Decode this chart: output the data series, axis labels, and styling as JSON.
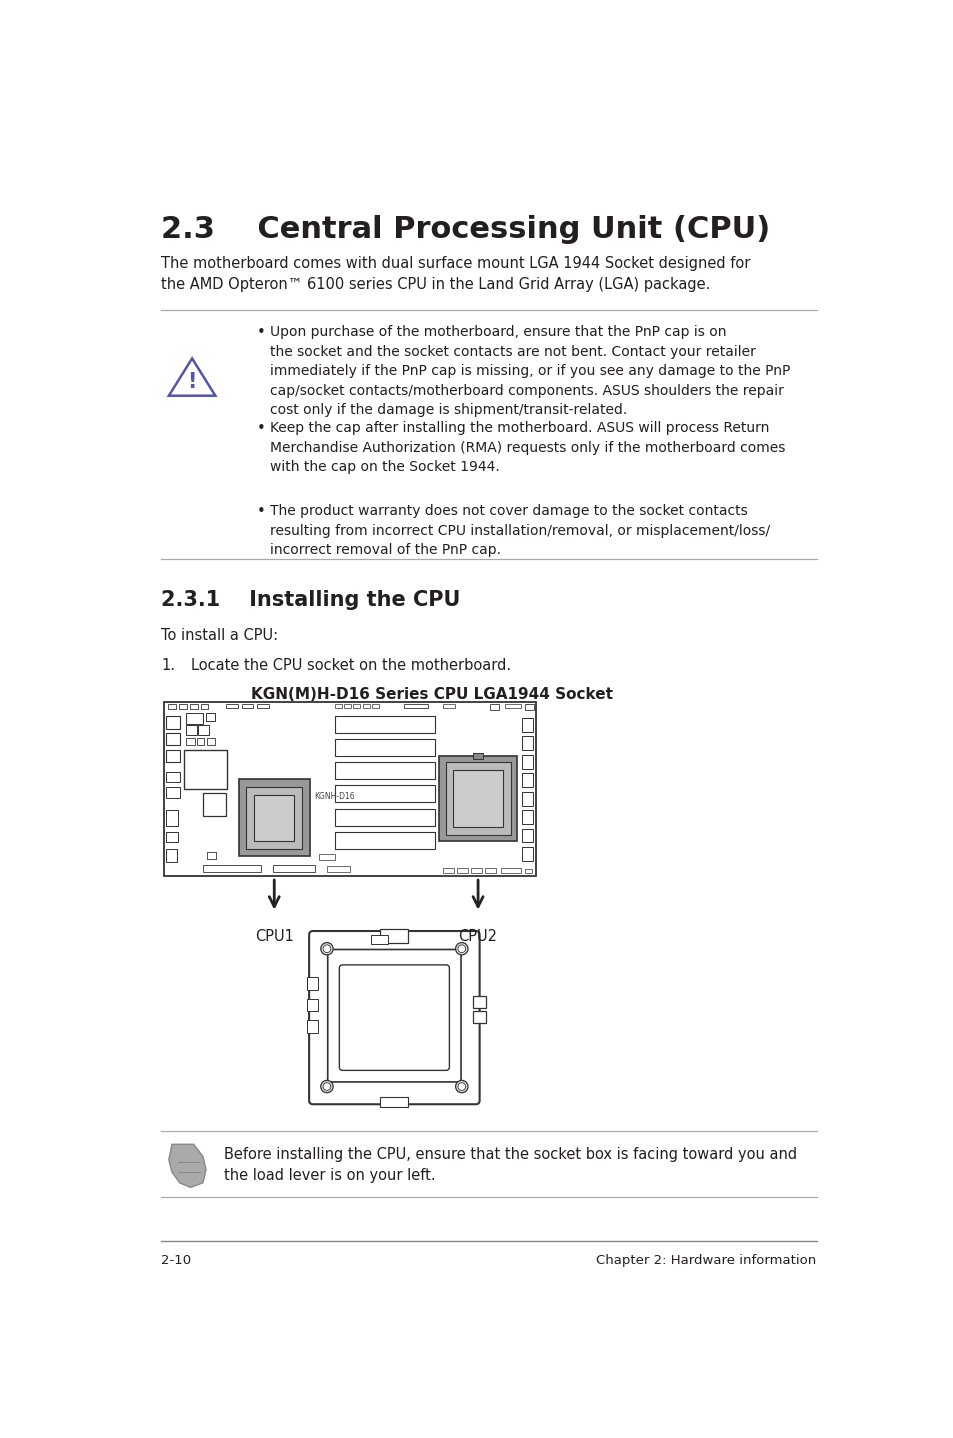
{
  "title": "2.3    Central Processing Unit (CPU)",
  "intro_text": "The motherboard comes with dual surface mount LGA 1944 Socket designed for\nthe AMD Opteron™ 6100 series CPU in the Land Grid Array (LGA) package.",
  "warning_bullets": [
    "Upon purchase of the motherboard, ensure that the PnP cap is on\nthe socket and the socket contacts are not bent. Contact your retailer\nimmediately if the PnP cap is missing, or if you see any damage to the PnP\ncap/socket contacts/motherboard components. ASUS shoulders the repair\ncost only if the damage is shipment/transit-related.",
    "Keep the cap after installing the motherboard. ASUS will process Return\nMerchandise Authorization (RMA) requests only if the motherboard comes\nwith the cap on the Socket 1944.",
    "The product warranty does not cover damage to the socket contacts\nresulting from incorrect CPU installation/removal, or misplacement/loss/\nincorrect removal of the PnP cap."
  ],
  "section_title": "2.3.1    Installing the CPU",
  "step_intro": "To install a CPU:",
  "step1_num": "1.",
  "step1_text": "Locate the CPU socket on the motherboard.",
  "diagram_title": "KGN(M)H-D16 Series CPU LGA1944 Socket",
  "cpu_labels": [
    "CPU1",
    "CPU2"
  ],
  "note_text": "Before installing the CPU, ensure that the socket box is facing toward you and\nthe load lever is on your left.",
  "footer_left": "2-10",
  "footer_right": "Chapter 2: Hardware information",
  "bg_color": "#ffffff",
  "text_color": "#231f20",
  "line_color": "#aaaaaa",
  "title_fontsize": 22,
  "section_fontsize": 15,
  "body_fontsize": 10.5,
  "small_fontsize": 9.5
}
